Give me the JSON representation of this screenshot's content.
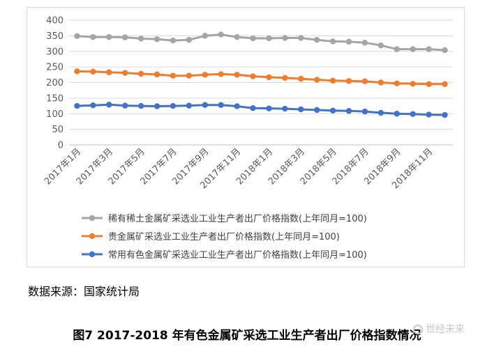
{
  "chart_data": {
    "type": "line",
    "title": "",
    "xlabel": "",
    "ylabel": "",
    "ylim": [
      0,
      400
    ],
    "yticks": [
      0,
      50,
      100,
      150,
      200,
      250,
      300,
      350,
      400
    ],
    "grid": true,
    "legend_position": "bottom",
    "categories": [
      "2017年1月",
      "2017年2月",
      "2017年3月",
      "2017年4月",
      "2017年5月",
      "2017年6月",
      "2017年7月",
      "2017年8月",
      "2017年9月",
      "2017年10月",
      "2017年11月",
      "2017年12月",
      "2018年1月",
      "2018年2月",
      "2018年3月",
      "2018年4月",
      "2018年5月",
      "2018年6月",
      "2018年7月",
      "2018年8月",
      "2018年9月",
      "2018年10月",
      "2018年11月",
      "2018年12月"
    ],
    "xtick_labels": [
      "2017年1月",
      "2017年3月",
      "2017年5月",
      "2017年7月",
      "2017年9月",
      "2017年11月",
      "2018年1月",
      "2018年3月",
      "2018年5月",
      "2018年7月",
      "2018年9月",
      "2018年11月"
    ],
    "series": [
      {
        "name": "稀有稀土金属矿采选业工业生产者出厂价格指数(上年同月=100)",
        "color": "#a5a5a5",
        "values": [
          349,
          346,
          346,
          345,
          341,
          339,
          335,
          337,
          350,
          354,
          346,
          342,
          342,
          343,
          343,
          337,
          332,
          331,
          328,
          319,
          307,
          307,
          307,
          304
        ]
      },
      {
        "name": "贵金属矿采选业工业生产者出厂价格指数(上年同月=100)",
        "color": "#ed7d31",
        "values": [
          236,
          235,
          233,
          231,
          228,
          226,
          222,
          222,
          225,
          227,
          225,
          220,
          217,
          215,
          212,
          209,
          206,
          205,
          204,
          200,
          197,
          196,
          195,
          195
        ]
      },
      {
        "name": "常用有色金属矿采选业工业生产者出厂价格指数(上年同月=100)",
        "color": "#4472c4",
        "values": [
          125,
          127,
          129,
          126,
          125,
          124,
          125,
          126,
          128,
          128,
          124,
          118,
          117,
          116,
          114,
          112,
          110,
          109,
          107,
          103,
          100,
          99,
          97,
          96
        ]
      }
    ]
  },
  "source_text": "数据来源：国家统计局",
  "caption": "图7 2017-2018 年有色金属矿采选工业生产者出厂价格指数情况",
  "watermark": "世经未来"
}
